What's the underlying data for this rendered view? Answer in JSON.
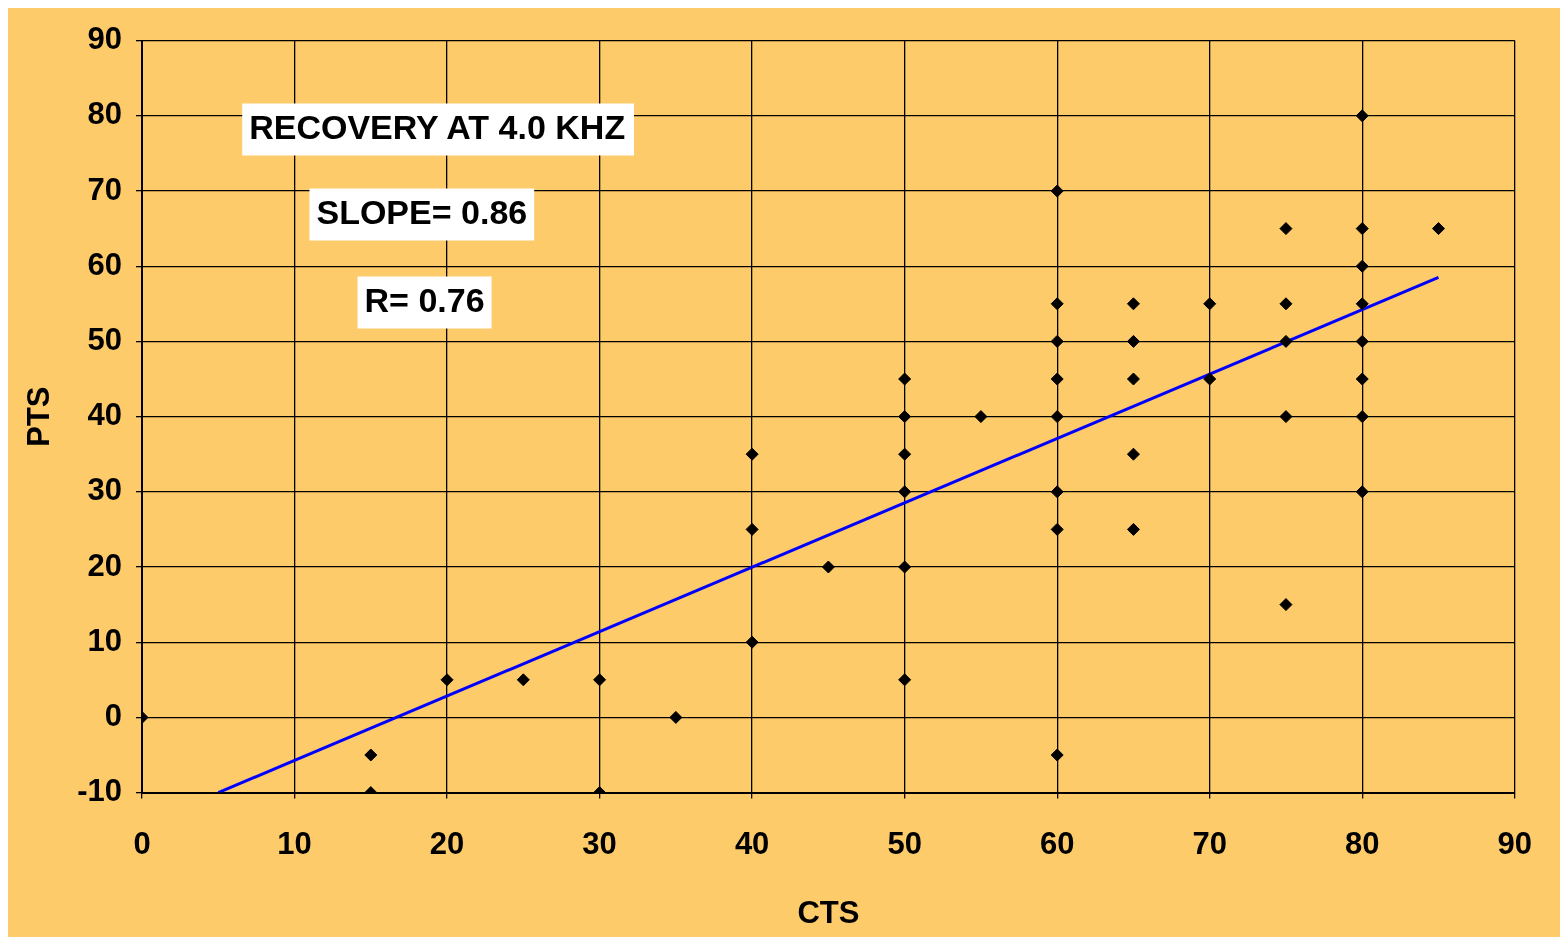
{
  "chart_data": {
    "type": "scatter",
    "xlabel": "CTS",
    "ylabel": "PTS",
    "annotations": [
      "RECOVERY AT 4.0 KHZ",
      "SLOPE= 0.86",
      "R= 0.76"
    ],
    "xlim": [
      0,
      90
    ],
    "xticks": [
      0,
      10,
      20,
      30,
      40,
      50,
      60,
      70,
      80,
      90
    ],
    "ylim": [
      -10,
      90
    ],
    "yticks": [
      -10,
      0,
      10,
      20,
      30,
      40,
      50,
      60,
      70,
      80,
      90
    ],
    "grid": true,
    "legend": false,
    "marker": "diamond",
    "series": [
      {
        "color": "#000000",
        "x": [
          0,
          15,
          15,
          20,
          25,
          30,
          30,
          35,
          40,
          40,
          40,
          45,
          50,
          50,
          50,
          50,
          50,
          50,
          55,
          60,
          60,
          60,
          60,
          60,
          60,
          60,
          60,
          65,
          65,
          65,
          65,
          65,
          70,
          70,
          75,
          75,
          75,
          75,
          75,
          80,
          80,
          80,
          80,
          80,
          80,
          80,
          80,
          85
        ],
        "values": [
          0,
          -5,
          -10,
          5,
          5,
          5,
          -10,
          0,
          35,
          25,
          10,
          20,
          45,
          40,
          35,
          30,
          20,
          5,
          40,
          70,
          55,
          50,
          45,
          40,
          30,
          25,
          -5,
          55,
          50,
          45,
          35,
          25,
          55,
          45,
          65,
          55,
          50,
          40,
          15,
          80,
          65,
          60,
          55,
          50,
          45,
          40,
          30,
          65
        ]
      },
      {
        "type": "line",
        "color": "#0000ff",
        "marker": "none",
        "x": [
          5,
          85
        ],
        "values": [
          -10,
          58.5
        ]
      }
    ]
  }
}
